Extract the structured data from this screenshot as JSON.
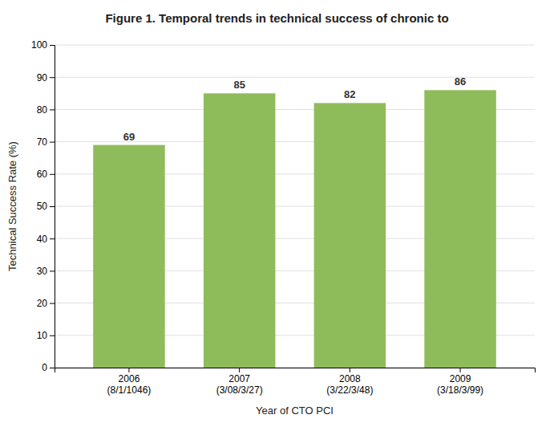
{
  "chart_data": {
    "type": "bar",
    "title": "Figure 1.  Temporal trends in technical success of chronic to",
    "categories": [
      "2006\n(8/1/1046)",
      "2007\n(3/08/3/27)",
      "2008\n(3/22/3/48)",
      "2009\n(3/18/3/99)"
    ],
    "values": [
      69,
      85,
      82,
      86
    ],
    "color": "#8fbc5a",
    "xlabel": "Year of CTO PCI",
    "ylabel": "Technical Success Rate (%)",
    "ylim": [
      0,
      100
    ],
    "yticks": [
      0,
      10,
      20,
      30,
      40,
      50,
      60,
      70,
      80,
      90,
      100
    ],
    "grid": true,
    "data_labels": true
  }
}
